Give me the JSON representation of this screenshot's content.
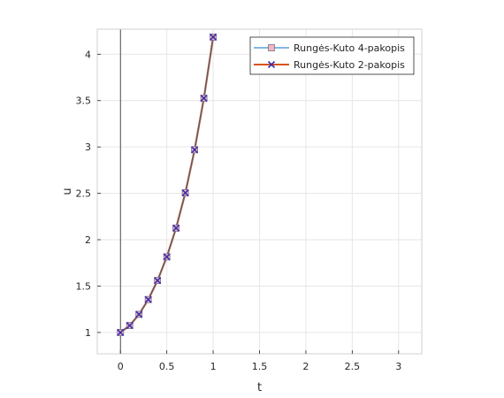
{
  "chart_data": {
    "type": "line",
    "xlabel": "t",
    "ylabel": "u",
    "xlim": [
      -0.25,
      3.25
    ],
    "ylim": [
      0.77,
      4.27
    ],
    "xticks": [
      0,
      0.5,
      1,
      1.5,
      2,
      2.5,
      3
    ],
    "xtick_labels": [
      "0",
      "0.5",
      "1",
      "1.5",
      "2",
      "2.5",
      "3"
    ],
    "yticks": [
      1,
      1.5,
      2,
      2.5,
      3,
      3.5,
      4
    ],
    "ytick_labels": [
      "1",
      "1.5",
      "2",
      "2.5",
      "3",
      "3.5",
      "4"
    ],
    "grid": true,
    "legend_position": "top-right",
    "vertical_line_x": 0,
    "series": [
      {
        "name": "Rungės-Kuto 4-pakopis",
        "color": "#0072bd",
        "marker": "square",
        "marker_face": "#f2b8b8",
        "x": [
          0,
          0.1,
          0.2,
          0.3,
          0.4,
          0.5,
          0.6,
          0.7,
          0.8,
          0.9,
          1.0
        ],
        "y": [
          1.0,
          1.075,
          1.195,
          1.355,
          1.56,
          1.815,
          2.125,
          2.505,
          2.97,
          3.525,
          4.185
        ]
      },
      {
        "name": "Rungės-Kuto 2-pakopis",
        "color": "#d95319",
        "marker": "x",
        "marker_color": "#3a2fa8",
        "x": [
          0,
          0.1,
          0.2,
          0.3,
          0.4,
          0.5,
          0.6,
          0.7,
          0.8,
          0.9,
          1.0
        ],
        "y": [
          1.0,
          1.075,
          1.195,
          1.355,
          1.56,
          1.815,
          2.125,
          2.505,
          2.97,
          3.525,
          4.185
        ]
      }
    ]
  }
}
